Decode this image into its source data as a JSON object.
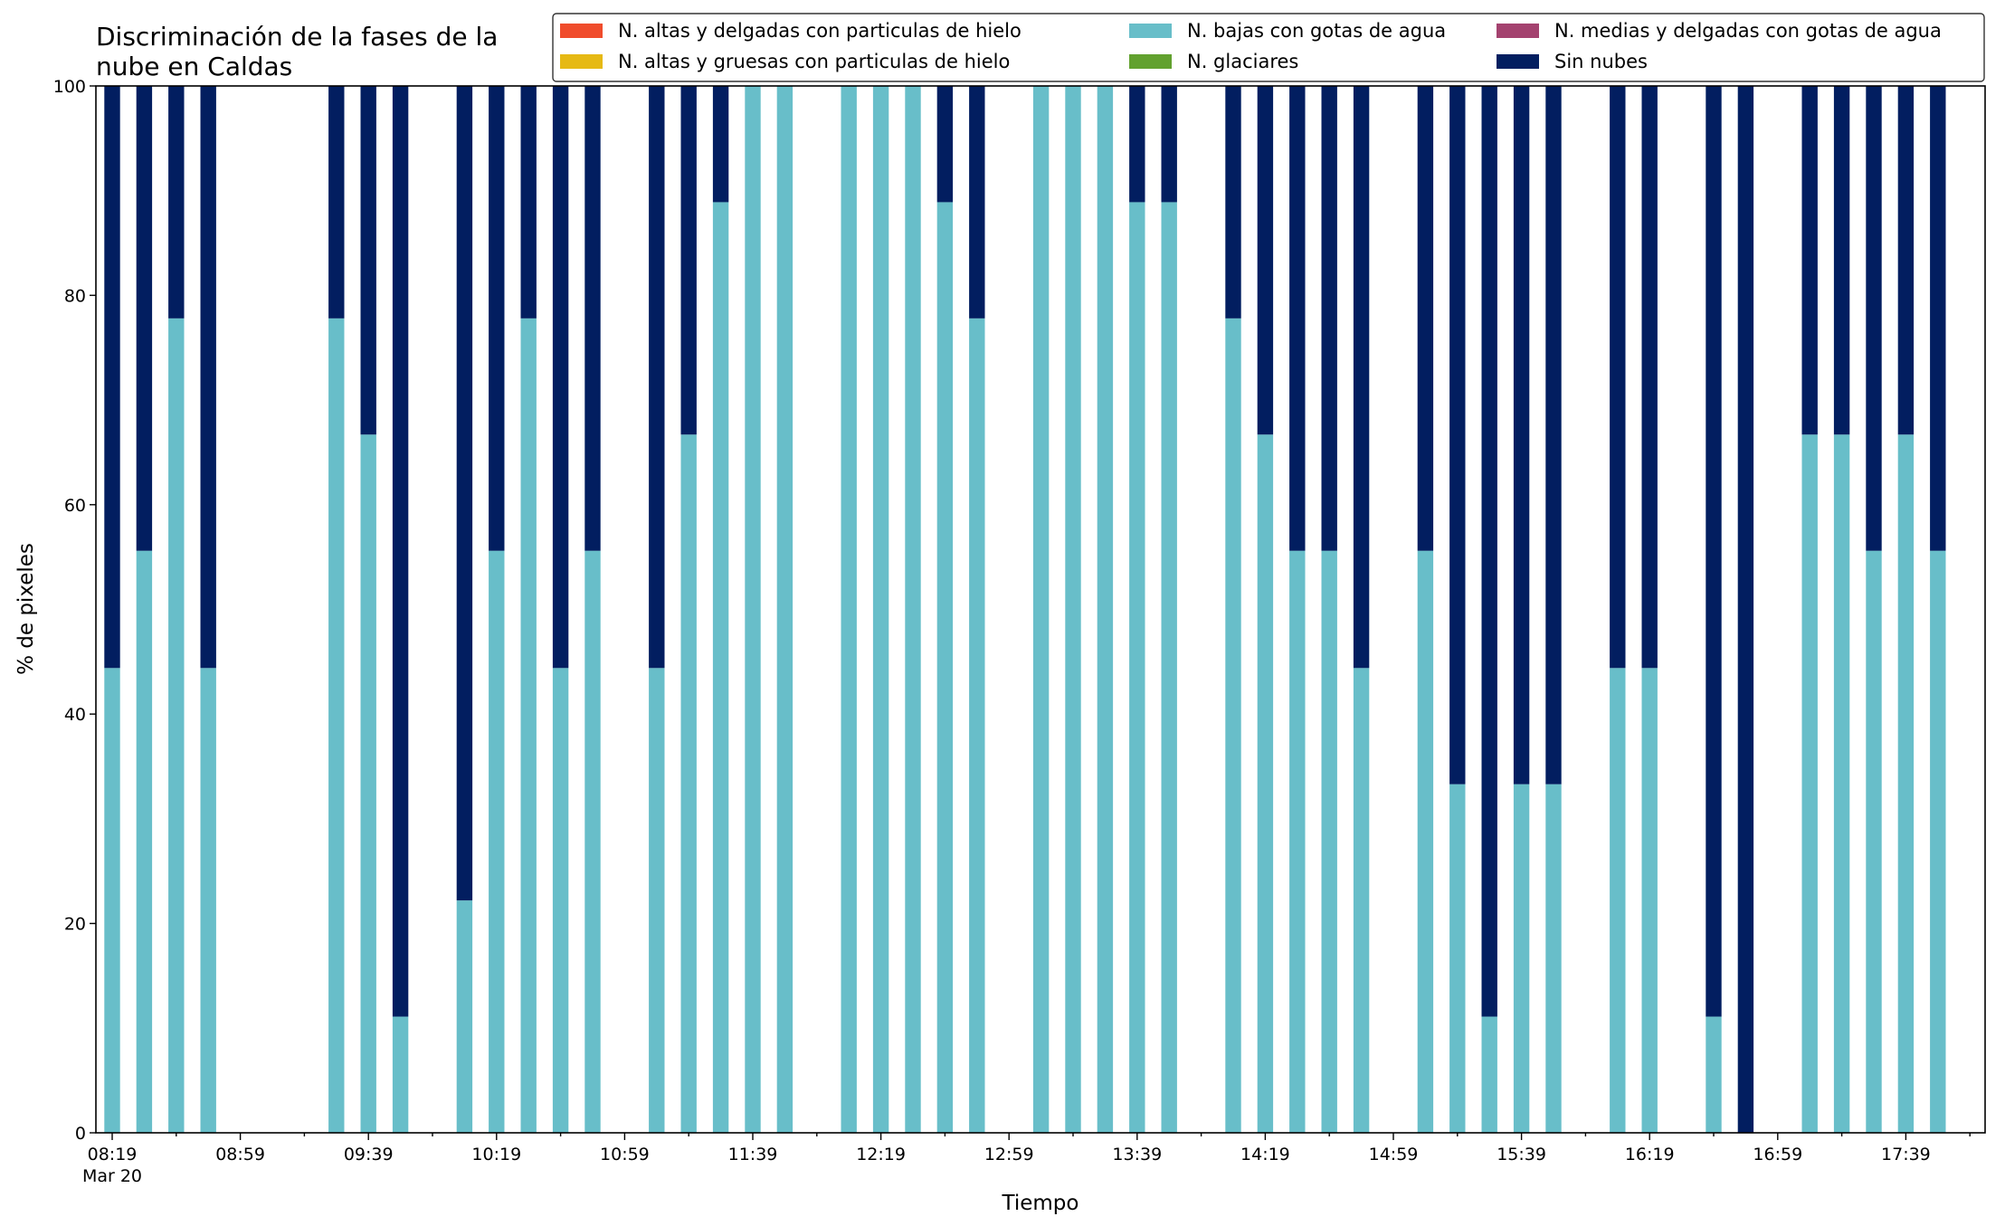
{
  "chart_data": {
    "type": "bar",
    "stacked": true,
    "title_lines": [
      "Discriminación de la fases de la",
      "nube en Caldas"
    ],
    "xlabel": "Tiempo",
    "ylabel": "% de pixeles",
    "ylim": [
      0,
      100
    ],
    "yticks": [
      0,
      20,
      40,
      60,
      80,
      100
    ],
    "x_tick_labels": [
      "08:19",
      "08:59",
      "09:39",
      "10:19",
      "10:59",
      "11:39",
      "12:19",
      "12:59",
      "13:39",
      "14:19",
      "14:59",
      "15:39",
      "16:19",
      "16:59",
      "17:39"
    ],
    "x_date_label": "Mar 20",
    "x_start": "08:19",
    "x_interval_minutes": 10,
    "legend_position": "top-right",
    "grid": false,
    "categories": [
      "08:19",
      "08:29",
      "08:39",
      "08:49",
      "08:59",
      "09:09",
      "09:19",
      "09:29",
      "09:39",
      "09:49",
      "09:59",
      "10:09",
      "10:19",
      "10:29",
      "10:39",
      "10:49",
      "10:59",
      "11:09",
      "11:19",
      "11:29",
      "11:39",
      "11:49",
      "11:59",
      "12:09",
      "12:19",
      "12:29",
      "12:39",
      "12:49",
      "12:59",
      "13:09",
      "13:19",
      "13:29",
      "13:39",
      "13:49",
      "13:59",
      "14:09",
      "14:19",
      "14:29",
      "14:39",
      "14:49",
      "14:59",
      "15:09",
      "15:19",
      "15:29",
      "15:39",
      "15:49",
      "15:59",
      "16:09",
      "16:19",
      "16:29",
      "16:39",
      "16:49",
      "16:59",
      "17:09",
      "17:19",
      "17:29",
      "17:39",
      "17:49"
    ],
    "series": [
      {
        "name": "N. altas y delgadas con particulas de hielo",
        "color": "#f04c2c",
        "values": [
          0,
          0,
          0,
          0,
          null,
          null,
          null,
          0,
          0,
          0,
          null,
          0,
          0,
          0,
          0,
          0,
          null,
          0,
          0,
          0,
          0,
          0,
          null,
          0,
          0,
          0,
          0,
          0,
          null,
          0,
          0,
          0,
          0,
          0,
          null,
          0,
          0,
          0,
          0,
          0,
          null,
          0,
          0,
          0,
          0,
          0,
          null,
          0,
          0,
          null,
          0,
          0,
          null,
          0,
          0,
          0,
          0,
          0
        ]
      },
      {
        "name": "N. altas y gruesas con particulas de hielo",
        "color": "#e6b914",
        "values": [
          0,
          0,
          0,
          0,
          null,
          null,
          null,
          0,
          0,
          0,
          null,
          0,
          0,
          0,
          0,
          0,
          null,
          0,
          0,
          0,
          0,
          0,
          null,
          0,
          0,
          0,
          0,
          0,
          null,
          0,
          0,
          0,
          0,
          0,
          null,
          0,
          0,
          0,
          0,
          0,
          null,
          0,
          0,
          0,
          0,
          0,
          null,
          0,
          0,
          null,
          0,
          0,
          null,
          0,
          0,
          0,
          0,
          0
        ]
      },
      {
        "name": "N. bajas con gotas de agua",
        "color": "#68bec9",
        "values": [
          44.4,
          55.6,
          77.8,
          44.4,
          null,
          null,
          null,
          77.8,
          66.7,
          11.1,
          null,
          22.2,
          55.6,
          77.8,
          44.4,
          55.6,
          null,
          44.4,
          66.7,
          88.9,
          100,
          100,
          null,
          100,
          100,
          100,
          88.9,
          77.8,
          null,
          100,
          100,
          100,
          88.9,
          88.9,
          null,
          77.8,
          66.7,
          55.6,
          55.6,
          44.4,
          null,
          55.6,
          33.3,
          11.1,
          33.3,
          33.3,
          null,
          44.4,
          44.4,
          null,
          11.1,
          0,
          null,
          66.7,
          66.7,
          55.6,
          66.7,
          55.6
        ]
      },
      {
        "name": "N. glaciares",
        "color": "#62a12f",
        "values": [
          0,
          0,
          0,
          0,
          null,
          null,
          null,
          0,
          0,
          0,
          null,
          0,
          0,
          0,
          0,
          0,
          null,
          0,
          0,
          0,
          0,
          0,
          null,
          0,
          0,
          0,
          0,
          0,
          null,
          0,
          0,
          0,
          0,
          0,
          null,
          0,
          0,
          0,
          0,
          0,
          null,
          0,
          0,
          0,
          0,
          0,
          null,
          0,
          0,
          null,
          0,
          0,
          null,
          0,
          0,
          0,
          0,
          0
        ]
      },
      {
        "name": "N. medias y delgadas con gotas de agua",
        "color": "#a4426f",
        "values": [
          0,
          0,
          0,
          0,
          null,
          null,
          null,
          0,
          0,
          0,
          null,
          0,
          0,
          0,
          0,
          0,
          null,
          0,
          0,
          0,
          0,
          0,
          null,
          0,
          0,
          0,
          0,
          0,
          null,
          0,
          0,
          0,
          0,
          0,
          null,
          0,
          0,
          0,
          0,
          0,
          null,
          0,
          0,
          0,
          0,
          0,
          null,
          0,
          0,
          null,
          0,
          0,
          null,
          0,
          0,
          0,
          0,
          0
        ]
      },
      {
        "name": "Sin nubes",
        "color": "#021e60",
        "values": [
          55.6,
          44.4,
          22.2,
          55.6,
          null,
          null,
          null,
          22.2,
          33.3,
          88.9,
          null,
          77.8,
          44.4,
          22.2,
          55.6,
          44.4,
          null,
          55.6,
          33.3,
          11.1,
          0,
          0,
          null,
          0,
          0,
          0,
          11.1,
          22.2,
          null,
          0,
          0,
          0,
          11.1,
          11.1,
          null,
          22.2,
          33.3,
          44.4,
          44.4,
          55.6,
          null,
          44.4,
          66.7,
          88.9,
          66.7,
          66.7,
          null,
          55.6,
          55.6,
          null,
          88.9,
          100,
          null,
          33.3,
          33.3,
          44.4,
          33.3,
          44.4
        ]
      }
    ]
  }
}
